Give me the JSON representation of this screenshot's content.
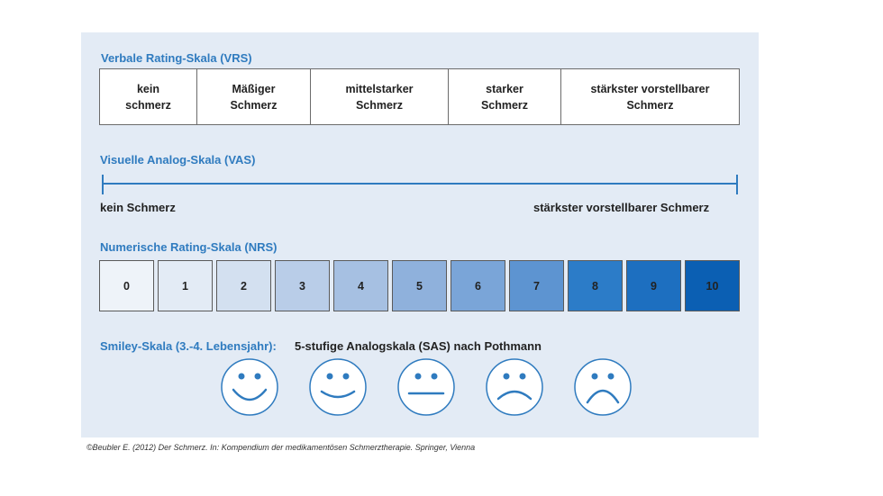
{
  "vrs": {
    "title": "Verbale Rating-Skala (VRS)",
    "cells": [
      "kein\nschmerz",
      "Mäßiger\nSchmerz",
      "mittelstarker\nSchmerz",
      "starker\nSchmerz",
      "stärkster vorstellbarer\nSchmerz"
    ]
  },
  "vas": {
    "title": "Visuelle Analog-Skala (VAS)",
    "left_label": "kein Schmerz",
    "right_label": "stärkster vorstellbarer Schmerz",
    "color": "#2f7bbf"
  },
  "nrs": {
    "title": "Numerische Rating-Skala (NRS)",
    "values": [
      "0",
      "1",
      "2",
      "3",
      "4",
      "5",
      "6",
      "7",
      "8",
      "9",
      "10"
    ],
    "colors": [
      "#eef3f9",
      "#e3ebf5",
      "#d3e0f0",
      "#b9cde8",
      "#a6c0e2",
      "#8fb1dc",
      "#7aa5d8",
      "#5d94d1",
      "#2c7cc8",
      "#1d6fc0",
      "#0b5fb3"
    ]
  },
  "smiley": {
    "title": "Smiley-Skala (3.-4. Lebensjahr):",
    "subtitle": "5-stufige Analogskala (SAS) nach Pothmann",
    "faces": [
      "very-happy-face-icon",
      "happy-face-icon",
      "neutral-face-icon",
      "sad-face-icon",
      "very-sad-face-icon"
    ]
  },
  "footer": "©Beubler E. (2012) Der Schmerz. In: Kompendium der medikamentösen Schmerztherapie. Springer, Vienna"
}
